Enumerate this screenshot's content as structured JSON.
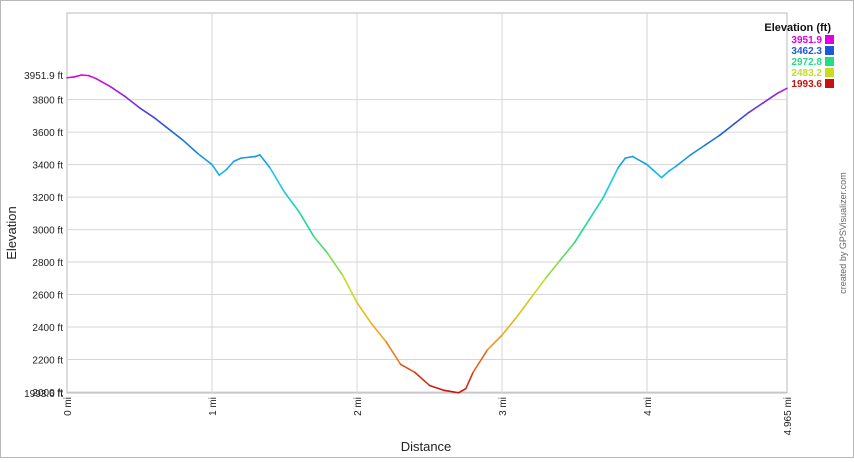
{
  "chart_data": {
    "type": "line",
    "xlabel": "Distance",
    "ylabel": "Elevation",
    "xlim": [
      0,
      4.965
    ],
    "ylim": [
      1993.6,
      3951.9
    ],
    "x_ticks": [
      {
        "value": 0,
        "label": "0 mi"
      },
      {
        "value": 1,
        "label": "1 mi"
      },
      {
        "value": 2,
        "label": "2 mi"
      },
      {
        "value": 3,
        "label": "3 mi"
      },
      {
        "value": 4,
        "label": "4 mi"
      },
      {
        "value": 4.965,
        "label": "4.965 mi"
      }
    ],
    "y_ticks": [
      {
        "value": 2000,
        "label": "2000 ft"
      },
      {
        "value": 2200,
        "label": "2200 ft"
      },
      {
        "value": 2400,
        "label": "2400 ft"
      },
      {
        "value": 2600,
        "label": "2600 ft"
      },
      {
        "value": 2800,
        "label": "2800 ft"
      },
      {
        "value": 3000,
        "label": "3000 ft"
      },
      {
        "value": 3200,
        "label": "3200 ft"
      },
      {
        "value": 3400,
        "label": "3400 ft"
      },
      {
        "value": 3600,
        "label": "3600 ft"
      },
      {
        "value": 3800,
        "label": "3800 ft"
      }
    ],
    "y_limit_labels": [
      {
        "value": 3951.9,
        "label": "3951.9 ft"
      },
      {
        "value": 1993.6,
        "label": "1993.6 ft"
      }
    ],
    "grid": true,
    "legend_position": "top-right",
    "legend": {
      "title": "Elevation (ft)",
      "entries": [
        {
          "label": "3951.9",
          "color": "#e000e0"
        },
        {
          "label": "3462.3",
          "color": "#1a5ad8"
        },
        {
          "label": "2972.8",
          "color": "#22dd88"
        },
        {
          "label": "2483.2",
          "color": "#c8dc20"
        },
        {
          "label": "1993.6",
          "color": "#c81010"
        }
      ]
    },
    "color_scale": [
      "#c81010",
      "#f5a020",
      "#c8dc20",
      "#22dd88",
      "#18c8e8",
      "#1a5ad8",
      "#e000e0"
    ],
    "series": [
      {
        "x": [
          0,
          0.05,
          0.1,
          0.15,
          0.2,
          0.3,
          0.4,
          0.5,
          0.6,
          0.7,
          0.8,
          0.9,
          1.0,
          1.05,
          1.1,
          1.15,
          1.2,
          1.3,
          1.33,
          1.4,
          1.5,
          1.55,
          1.6,
          1.7,
          1.8,
          1.9,
          2.0,
          2.1,
          2.2,
          2.3,
          2.4,
          2.5,
          2.6,
          2.7,
          2.75,
          2.8,
          2.9,
          3.0,
          3.1,
          3.2,
          3.3,
          3.4,
          3.5,
          3.6,
          3.7,
          3.8,
          3.85,
          3.9,
          4.0,
          4.05,
          4.1,
          4.15,
          4.2,
          4.3,
          4.4,
          4.5,
          4.6,
          4.7,
          4.8,
          4.9,
          4.965
        ],
        "y": [
          3935,
          3940,
          3951.9,
          3948,
          3930,
          3880,
          3820,
          3750,
          3690,
          3620,
          3550,
          3470,
          3400,
          3335,
          3370,
          3420,
          3440,
          3450,
          3460,
          3380,
          3230,
          3170,
          3110,
          2960,
          2850,
          2720,
          2550,
          2420,
          2310,
          2170,
          2120,
          2040,
          2010,
          1995,
          2020,
          2120,
          2260,
          2350,
          2460,
          2580,
          2700,
          2810,
          2920,
          3060,
          3200,
          3380,
          3440,
          3450,
          3400,
          3360,
          3320,
          3360,
          3390,
          3460,
          3520,
          3580,
          3650,
          3720,
          3780,
          3840,
          3870
        ]
      }
    ]
  },
  "watermark": "created by GPSVisualizer.com"
}
